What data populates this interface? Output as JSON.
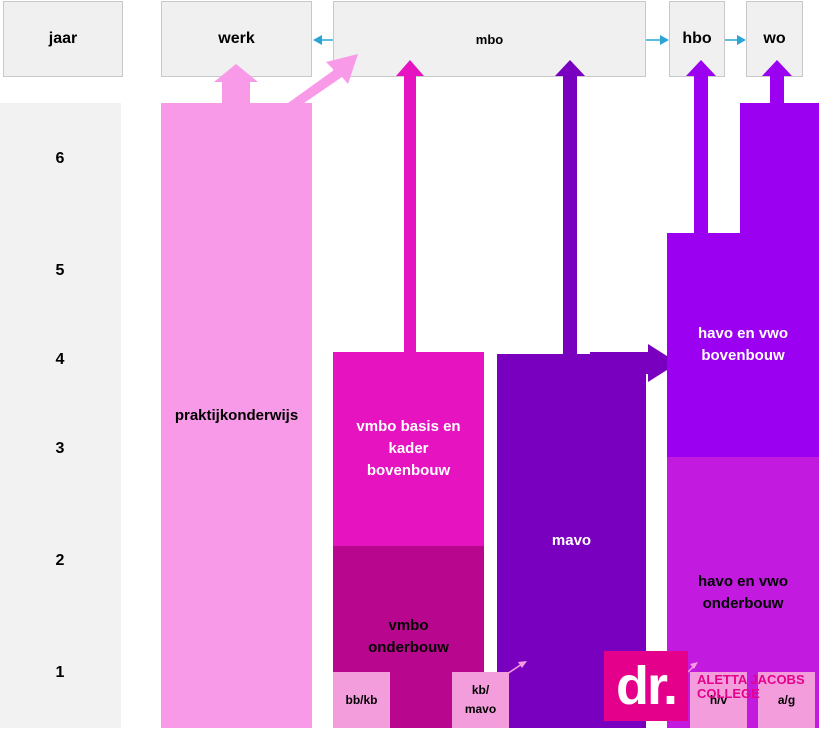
{
  "header": {
    "year": "jaar",
    "werk": "werk",
    "mbo": "mbo",
    "hbo": "hbo",
    "wo": "wo"
  },
  "years": [
    "6",
    "5",
    "4",
    "3",
    "2",
    "1"
  ],
  "blocks": {
    "praktijk": "praktijkonderwijs",
    "vmbo_boven": "vmbo basis en kader bovenbouw",
    "vmbo_onder": "vmbo onderbouw",
    "mavo": "mavo",
    "havo_boven": "havo en vwo bovenbouw",
    "havo_onder": "havo en vwo onderbouw"
  },
  "tiles": {
    "bbkb": "bb/kb",
    "kbmavo": "kb/ mavo",
    "hv": "h/v",
    "ag": "a/g"
  },
  "logo": {
    "mark": "dr.",
    "line1": "ALETTA JACOBS",
    "line2": "COLLEGE"
  },
  "colors": {
    "praktijk": "#f99ae9",
    "vmbo_boven": "#e614c0",
    "vmbo_onder": "#b8078e",
    "mavo": "#7a00bf",
    "havo_boven": "#9b00f0",
    "havo_onder": "#c21adf",
    "connector": "#2aa4d4"
  }
}
